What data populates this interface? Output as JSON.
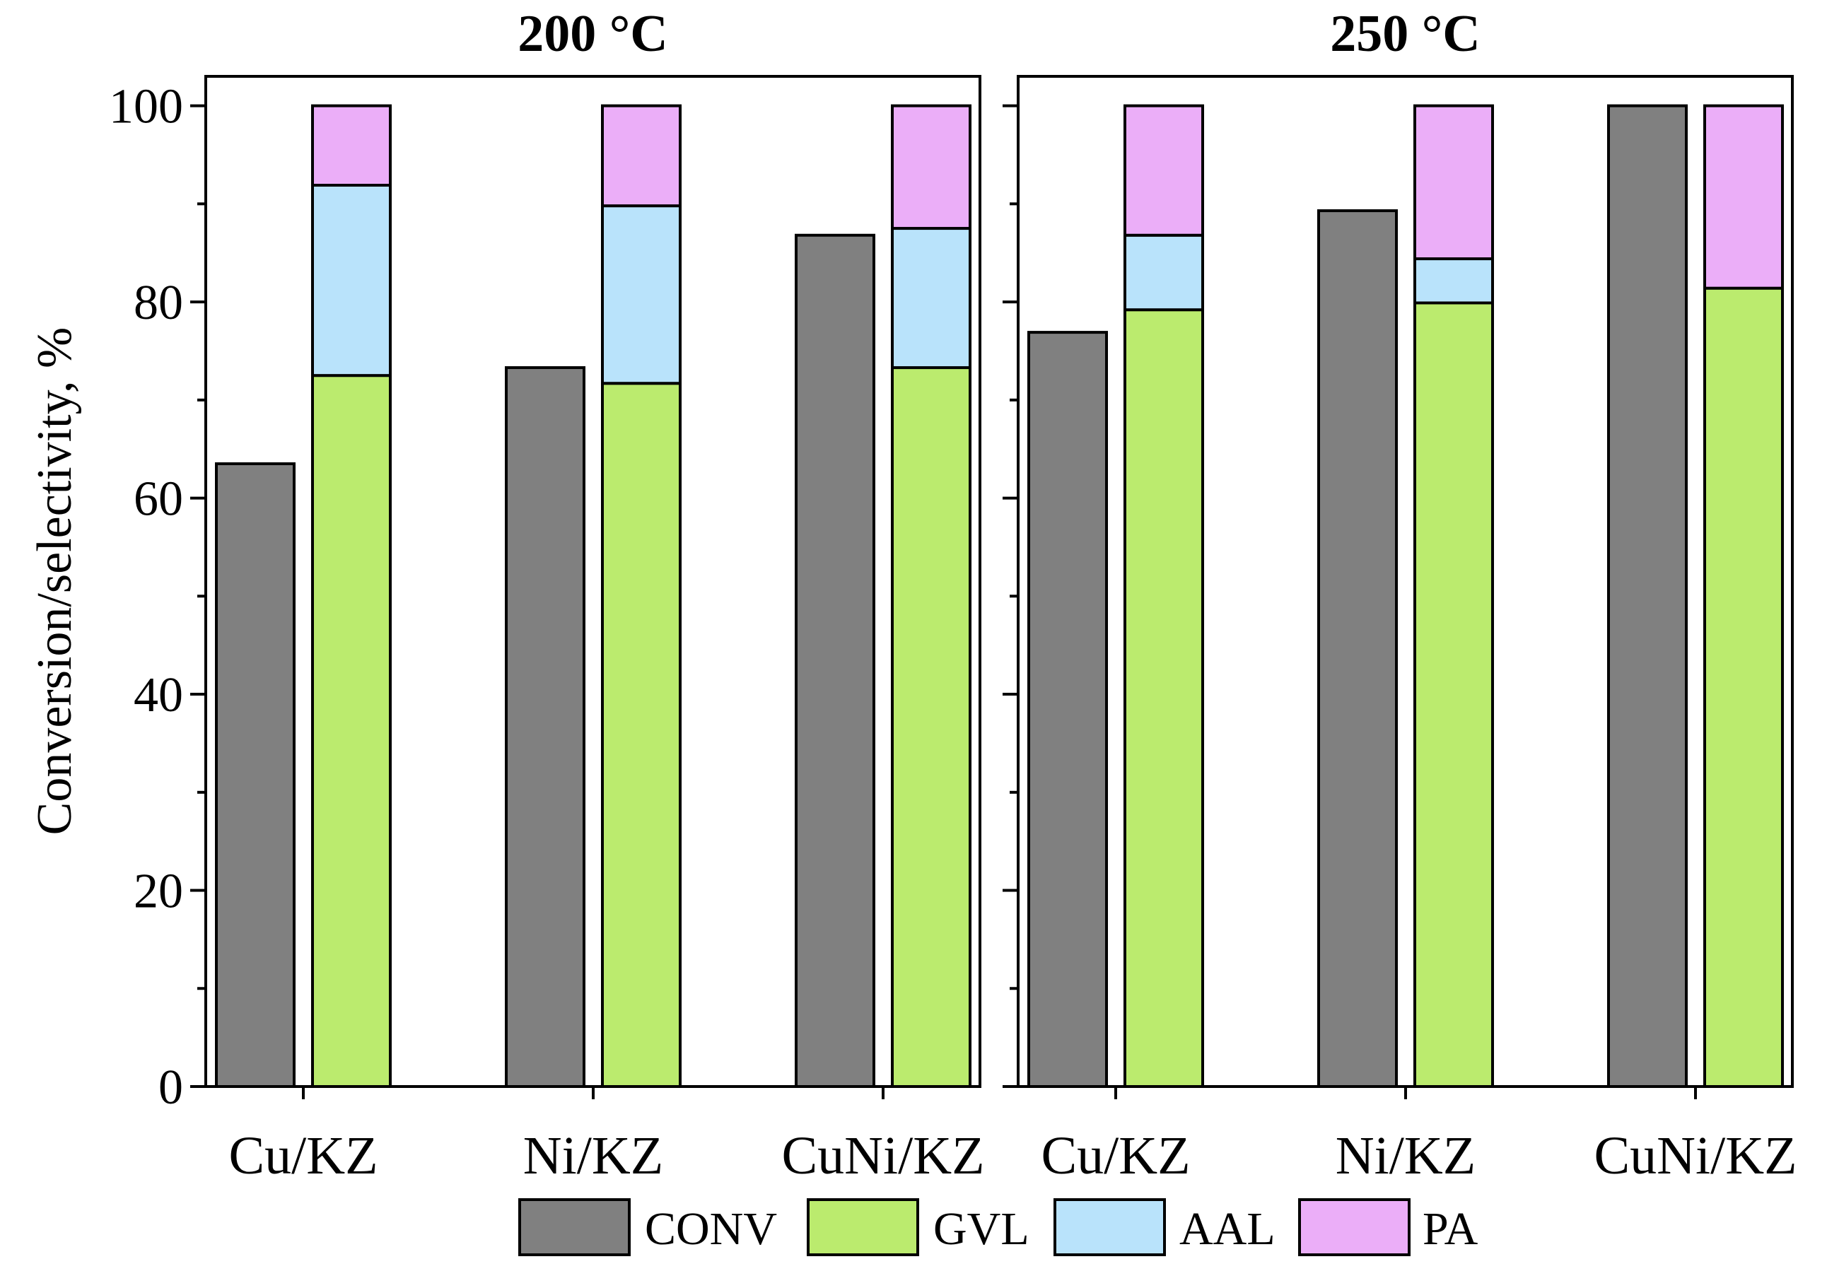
{
  "figure": {
    "ylabel": "Conversion/selectivity, %",
    "yticks": [
      0,
      20,
      40,
      60,
      80,
      100
    ],
    "ylim": [
      0,
      103
    ]
  },
  "chart_data": [
    {
      "type": "bar",
      "title": "200 °C",
      "categories": [
        "Cu/KZ",
        "Ni/KZ",
        "CuNi/KZ"
      ],
      "xlabel": "",
      "ylabel": "Conversion/selectivity, %",
      "ylim": [
        0,
        103
      ],
      "conversion": {
        "name": "CONV",
        "values": [
          63.5,
          73.3,
          86.8
        ]
      },
      "selectivity_stack": [
        {
          "name": "GVL",
          "values": [
            72.5,
            71.7,
            73.3
          ]
        },
        {
          "name": "AAL",
          "values": [
            19.4,
            18.1,
            14.2
          ]
        },
        {
          "name": "PA",
          "values": [
            8.1,
            10.2,
            12.5
          ]
        }
      ]
    },
    {
      "type": "bar",
      "title": "250 °C",
      "categories": [
        "Cu/KZ",
        "Ni/KZ",
        "CuNi/KZ"
      ],
      "xlabel": "",
      "ylabel": "",
      "ylim": [
        0,
        103
      ],
      "conversion": {
        "name": "CONV",
        "values": [
          76.9,
          89.3,
          100
        ]
      },
      "selectivity_stack": [
        {
          "name": "GVL",
          "values": [
            79.2,
            79.9,
            81.4
          ]
        },
        {
          "name": "AAL",
          "values": [
            7.6,
            4.5,
            0
          ]
        },
        {
          "name": "PA",
          "values": [
            13.2,
            15.6,
            18.6
          ]
        }
      ]
    }
  ],
  "legend": {
    "placement": "bottom-center",
    "items": [
      {
        "label": "CONV",
        "color": "#808080"
      },
      {
        "label": "GVL",
        "color": "#bbeb6e"
      },
      {
        "label": "AAL",
        "color": "#b9e3fb"
      },
      {
        "label": "PA",
        "color": "#ebaef8"
      }
    ]
  }
}
